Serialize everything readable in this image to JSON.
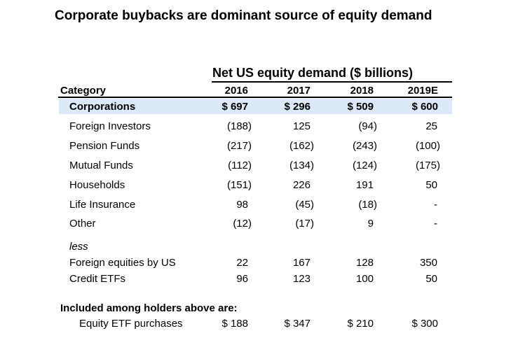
{
  "title": "Corporate buybacks are dominant source of equity demand",
  "table": {
    "group_header": "Net US equity demand ($ billions)",
    "category_header": "Category",
    "columns": [
      "2016",
      "2017",
      "2018",
      "2019E"
    ],
    "highlight_color": "#dbe9f9",
    "rows": [
      {
        "label": "Corporations",
        "values": [
          "$ 697",
          "$ 296",
          "$ 509",
          "$ 600"
        ]
      },
      {
        "label": "Foreign Investors",
        "values": [
          "(188)",
          "125",
          "(94)",
          "25"
        ]
      },
      {
        "label": "Pension Funds",
        "values": [
          "(217)",
          "(162)",
          "(243)",
          "(100)"
        ]
      },
      {
        "label": "Mutual Funds",
        "values": [
          "(112)",
          "(134)",
          "(124)",
          "(175)"
        ]
      },
      {
        "label": "Households",
        "values": [
          "(151)",
          "226",
          "191",
          "50"
        ]
      },
      {
        "label": "Life Insurance",
        "values": [
          "98",
          "(45)",
          "(18)",
          "-"
        ]
      },
      {
        "label": "Other",
        "values": [
          "(12)",
          "(17)",
          "9",
          "-"
        ]
      }
    ],
    "less_label": "less",
    "less_rows": [
      {
        "label": "Foreign equities by US",
        "values": [
          "22",
          "167",
          "128",
          "350"
        ]
      },
      {
        "label": "Credit ETFs",
        "values": [
          "96",
          "123",
          "100",
          "50"
        ]
      }
    ],
    "included_header": "Included among holders above are:",
    "included_rows": [
      {
        "label": "Equity ETF purchases",
        "values": [
          "$ 188",
          "$ 347",
          "$ 210",
          "$ 300"
        ]
      }
    ]
  }
}
